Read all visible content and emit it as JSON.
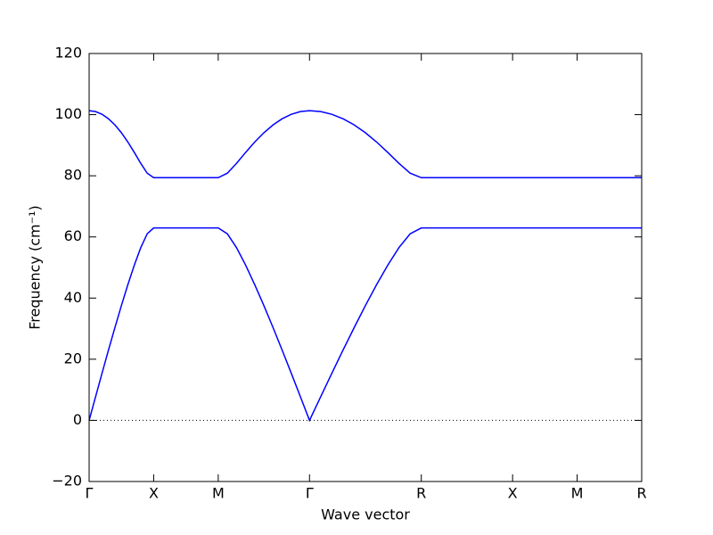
{
  "chart_data": {
    "type": "line",
    "xlabel": "Wave vector",
    "ylabel": "Frequency (cm⁻¹)",
    "x": [
      0,
      0.05,
      0.1,
      0.15,
      0.2,
      0.25,
      0.3,
      0.35,
      0.4,
      0.45,
      0.5,
      1.0,
      1.0707,
      1.1414,
      1.2121,
      1.2828,
      1.3536,
      1.4243,
      1.495,
      1.5657,
      1.6364,
      1.7071,
      1.7937,
      1.8803,
      1.9669,
      2.0535,
      2.1401,
      2.2267,
      2.3133,
      2.3999,
      2.4865,
      2.5731,
      3.2802,
      3.7802,
      4.2802
    ],
    "series": [
      {
        "color": "#0000ff",
        "values": [
          0,
          7.74,
          15.42,
          22.99,
          30.38,
          37.54,
          44.38,
          50.78,
          56.51,
          61.02,
          62.93,
          62.93,
          61.02,
          56.51,
          50.78,
          44.38,
          37.54,
          30.38,
          22.99,
          15.42,
          7.74,
          0,
          7.74,
          15.42,
          22.99,
          30.38,
          37.54,
          44.38,
          50.78,
          56.51,
          61.02,
          62.93,
          62.93,
          62.93,
          62.93
        ]
      },
      {
        "color": "#0000ff",
        "values": [
          101.29,
          101.0,
          100.11,
          98.65,
          96.63,
          94.08,
          91.05,
          87.64,
          84.06,
          80.85,
          79.37,
          79.37,
          80.85,
          84.06,
          87.64,
          91.05,
          94.08,
          96.63,
          98.65,
          100.11,
          101.0,
          101.29,
          101.0,
          100.11,
          98.65,
          96.63,
          94.08,
          91.05,
          87.64,
          84.06,
          80.85,
          79.37,
          79.37,
          79.37,
          79.37
        ]
      }
    ],
    "xlim": [
      0,
      4.2802
    ],
    "xticks": [
      {
        "value": 0,
        "label": "Γ"
      },
      {
        "value": 0.5,
        "label": "X"
      },
      {
        "value": 1.0,
        "label": "M"
      },
      {
        "value": 1.7071,
        "label": "Γ"
      },
      {
        "value": 2.5731,
        "label": "R"
      },
      {
        "value": 3.2802,
        "label": "X"
      },
      {
        "value": 3.7802,
        "label": "M"
      },
      {
        "value": 4.2802,
        "label": "R"
      }
    ],
    "ylim": [
      -20,
      120
    ],
    "yticks": [
      {
        "value": -20,
        "label": "−20"
      },
      0,
      20,
      40,
      60,
      80,
      100,
      120
    ],
    "hline": 0,
    "grid": false
  }
}
